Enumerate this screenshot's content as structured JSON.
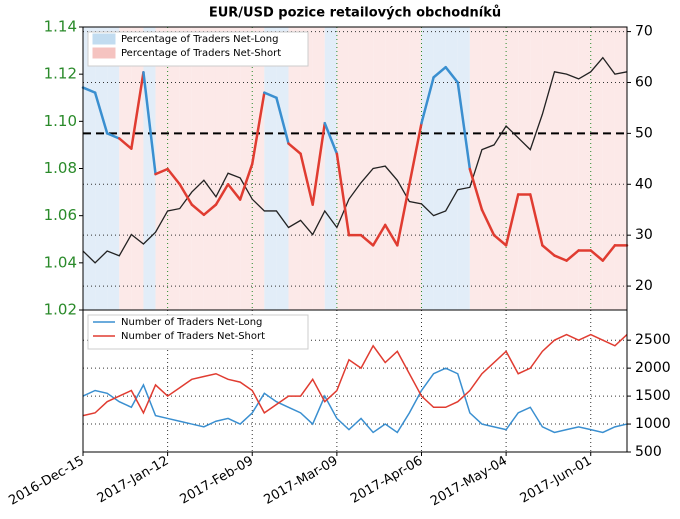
{
  "chart_data": [
    {
      "type": "line",
      "title": "EUR/USD pozice retailových obchodníků",
      "x": [
        "2016-12-15",
        "2016-12-19",
        "2016-12-23",
        "2016-12-27",
        "2016-12-31",
        "2017-01-04",
        "2017-01-08",
        "2017-01-12",
        "2017-01-16",
        "2017-01-20",
        "2017-01-24",
        "2017-01-28",
        "2017-02-01",
        "2017-02-05",
        "2017-02-09",
        "2017-02-13",
        "2017-02-17",
        "2017-02-21",
        "2017-02-25",
        "2017-03-01",
        "2017-03-05",
        "2017-03-09",
        "2017-03-13",
        "2017-03-17",
        "2017-03-21",
        "2017-03-25",
        "2017-03-29",
        "2017-04-02",
        "2017-04-06",
        "2017-04-10",
        "2017-04-14",
        "2017-04-18",
        "2017-04-22",
        "2017-04-26",
        "2017-04-30",
        "2017-05-04",
        "2017-05-08",
        "2017-05-12",
        "2017-05-16",
        "2017-05-20",
        "2017-05-24",
        "2017-05-28",
        "2017-06-01",
        "2017-06-05",
        "2017-06-09",
        "2017-06-13"
      ],
      "xlim": [
        "2016-12-15",
        "2017-06-13"
      ],
      "ylim": [
        1.02,
        1.14
      ],
      "yticks": [
        1.02,
        1.04,
        1.06,
        1.08,
        {
          "value": 1.1,
          "label": "1.10"
        },
        1.12,
        1.14
      ],
      "y2lim": [
        15.3,
        70.9
      ],
      "y2ticks": [
        20,
        30,
        40,
        50,
        60,
        70
      ],
      "hline": 50,
      "grid": true,
      "series": [
        {
          "color": "#222222",
          "values": [
            1.045,
            1.04,
            1.045,
            1.043,
            1.052,
            1.048,
            1.053,
            1.062,
            1.063,
            1.07,
            1.075,
            1.068,
            1.078,
            1.076,
            1.067,
            1.062,
            1.062,
            1.055,
            1.058,
            1.052,
            1.062,
            1.055,
            1.067,
            1.074,
            1.08,
            1.081,
            1.075,
            1.066,
            1.065,
            1.06,
            1.062,
            1.071,
            1.072,
            1.088,
            1.09,
            1.098,
            1.093,
            1.088,
            1.103,
            1.121,
            1.12,
            1.118,
            1.121,
            1.127,
            1.12,
            1.121
          ]
        },
        {
          "name": "Percentage of Traders Net-Long",
          "color": "#3a8fd0",
          "axis": "y2",
          "values": [
            59,
            58,
            50,
            49,
            47,
            62,
            42,
            43,
            40,
            36,
            34,
            36,
            40,
            37,
            44,
            58,
            57,
            48,
            46,
            36,
            52,
            46,
            30,
            30,
            28,
            32,
            28,
            40,
            52,
            61,
            63,
            60,
            43,
            35,
            30,
            28,
            38,
            38,
            28,
            26,
            25,
            27,
            27,
            25,
            28,
            28
          ]
        }
      ],
      "short_label": "Percentage of Traders Net-Short",
      "short_color": "#e03c31"
    },
    {
      "type": "line",
      "x": [
        "2016-12-15",
        "2016-12-19",
        "2016-12-23",
        "2016-12-27",
        "2016-12-31",
        "2017-01-04",
        "2017-01-08",
        "2017-01-12",
        "2017-01-16",
        "2017-01-20",
        "2017-01-24",
        "2017-01-28",
        "2017-02-01",
        "2017-02-05",
        "2017-02-09",
        "2017-02-13",
        "2017-02-17",
        "2017-02-21",
        "2017-02-25",
        "2017-03-01",
        "2017-03-05",
        "2017-03-09",
        "2017-03-13",
        "2017-03-17",
        "2017-03-21",
        "2017-03-25",
        "2017-03-29",
        "2017-04-02",
        "2017-04-06",
        "2017-04-10",
        "2017-04-14",
        "2017-04-18",
        "2017-04-22",
        "2017-04-26",
        "2017-04-30",
        "2017-05-04",
        "2017-05-08",
        "2017-05-12",
        "2017-05-16",
        "2017-05-20",
        "2017-05-24",
        "2017-05-28",
        "2017-06-01",
        "2017-06-05",
        "2017-06-09",
        "2017-06-13"
      ],
      "xlim": [
        "2016-12-15",
        "2017-06-13"
      ],
      "xticks": [
        {
          "value": "2016-12-15",
          "label": "2016-Dec-15"
        },
        {
          "value": "2017-01-12",
          "label": "2017-Jan-12"
        },
        {
          "value": "2017-02-09",
          "label": "2017-Feb-09"
        },
        {
          "value": "2017-03-09",
          "label": "2017-Mar-09"
        },
        {
          "value": "2017-04-06",
          "label": "2017-Apr-06"
        },
        {
          "value": "2017-05-04",
          "label": "2017-May-04"
        },
        {
          "value": "2017-06-01",
          "label": "2017-Jun-01"
        }
      ],
      "y2lim": [
        500,
        3040
      ],
      "y2ticks": [
        500,
        1000,
        1500,
        2000,
        2500
      ],
      "grid": true,
      "series": [
        {
          "name": "Number of Traders Net-Long",
          "color": "#3a8fd0",
          "values": [
            1500,
            1600,
            1550,
            1400,
            1300,
            1700,
            1150,
            1100,
            1050,
            1000,
            950,
            1050,
            1100,
            1000,
            1200,
            1550,
            1400,
            1300,
            1200,
            1000,
            1500,
            1100,
            900,
            1100,
            850,
            1000,
            850,
            1200,
            1600,
            1900,
            2000,
            1900,
            1200,
            1000,
            950,
            900,
            1200,
            1300,
            950,
            850,
            900,
            950,
            900,
            850,
            950,
            1000
          ]
        },
        {
          "name": "Number of Traders Net-Short",
          "color": "#e03c31",
          "values": [
            1150,
            1200,
            1400,
            1500,
            1600,
            1200,
            1700,
            1500,
            1650,
            1800,
            1850,
            1900,
            1800,
            1750,
            1600,
            1200,
            1350,
            1500,
            1500,
            1800,
            1400,
            1600,
            2150,
            2000,
            2400,
            2100,
            2300,
            1900,
            1500,
            1300,
            1300,
            1400,
            1600,
            1900,
            2100,
            2300,
            1900,
            2000,
            2300,
            2500,
            2600,
            2500,
            2600,
            2500,
            2400,
            2600
          ]
        }
      ]
    }
  ]
}
